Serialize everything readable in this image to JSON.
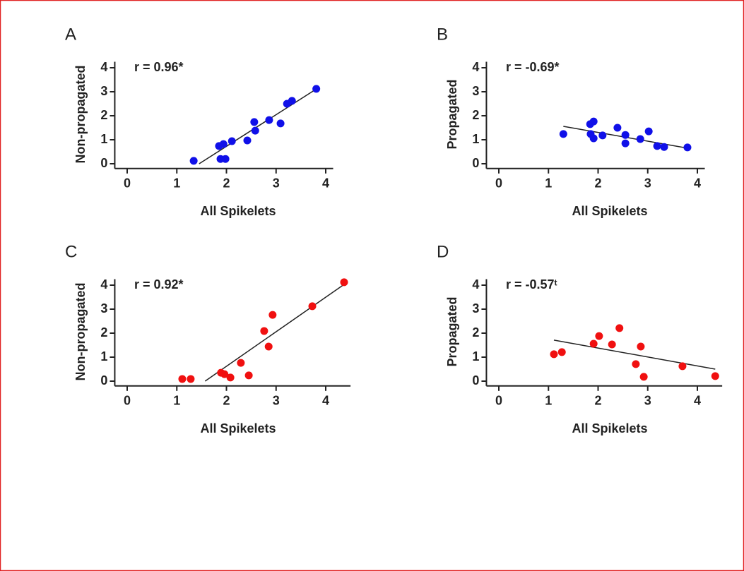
{
  "chart_data": [
    {
      "type": "scatter",
      "panel": "A",
      "annotation": "r = 0.96*",
      "xlabel": "All Spikelets",
      "ylabel": "Non-propagated",
      "color": "#1010e8",
      "x": [
        1.34,
        1.85,
        1.94,
        1.88,
        1.98,
        2.11,
        2.42,
        2.56,
        2.58,
        2.86,
        3.09,
        3.22,
        3.32,
        3.81
      ],
      "y": [
        0.12,
        0.74,
        0.82,
        0.2,
        0.2,
        0.94,
        0.97,
        1.74,
        1.38,
        1.82,
        1.68,
        2.5,
        2.62,
        3.12
      ],
      "trendline": {
        "x": [
          1.45,
          3.8
        ],
        "y": [
          0,
          3.1
        ]
      },
      "xlim": [
        -0.25,
        4.15
      ],
      "ylim": [
        -0.2,
        4.25
      ],
      "xticks": [
        0,
        1,
        2,
        3,
        4
      ],
      "yticks": [
        0,
        1,
        2,
        3,
        4
      ]
    },
    {
      "type": "scatter",
      "panel": "B",
      "annotation": "r = -0.69*",
      "xlabel": "All Spikelets",
      "ylabel": "Propagated",
      "color": "#1010e8",
      "x": [
        1.3,
        1.84,
        1.91,
        1.85,
        1.91,
        2.09,
        2.39,
        2.55,
        2.55,
        2.85,
        3.02,
        3.19,
        3.33,
        3.8
      ],
      "y": [
        1.24,
        1.65,
        1.76,
        1.24,
        1.06,
        1.18,
        1.5,
        1.2,
        0.85,
        1.03,
        1.35,
        0.74,
        0.7,
        0.68
      ],
      "trendline": {
        "x": [
          1.3,
          3.8
        ],
        "y": [
          1.56,
          0.65
        ]
      },
      "xlim": [
        -0.25,
        4.15
      ],
      "ylim": [
        -0.2,
        4.25
      ],
      "xticks": [
        0,
        1,
        2,
        3,
        4
      ],
      "yticks": [
        0,
        1,
        2,
        3,
        4
      ]
    },
    {
      "type": "scatter",
      "panel": "C",
      "annotation": "r = 0.92*",
      "xlabel": "All Spikelets",
      "ylabel": "Non-propagated",
      "color": "#f01010",
      "x": [
        1.11,
        1.28,
        1.89,
        1.96,
        2.08,
        2.29,
        2.45,
        2.76,
        2.85,
        2.93,
        3.73,
        4.37
      ],
      "y": [
        0.09,
        0.09,
        0.35,
        0.29,
        0.15,
        0.76,
        0.24,
        2.09,
        1.44,
        2.76,
        3.12,
        4.12
      ],
      "trendline": {
        "x": [
          1.57,
          4.37
        ],
        "y": [
          0,
          4.03
        ]
      },
      "xlim": [
        -0.25,
        4.5
      ],
      "ylim": [
        -0.2,
        4.25
      ],
      "xticks": [
        0,
        1,
        2,
        3,
        4
      ],
      "yticks": [
        0,
        1,
        2,
        3,
        4
      ]
    },
    {
      "type": "scatter",
      "panel": "D",
      "annotation": "r = -0.57ᵗ",
      "xlabel": "All Spikelets",
      "ylabel": "Propagated",
      "color": "#f01010",
      "x": [
        1.11,
        1.27,
        1.91,
        2.02,
        2.28,
        2.43,
        2.76,
        2.86,
        2.92,
        3.7,
        4.36
      ],
      "y": [
        1.12,
        1.21,
        1.56,
        1.88,
        1.53,
        2.21,
        0.71,
        1.44,
        0.18,
        0.62,
        0.21
      ],
      "trendline": {
        "x": [
          1.11,
          4.36
        ],
        "y": [
          1.71,
          0.5
        ]
      },
      "xlim": [
        -0.25,
        4.5
      ],
      "ylim": [
        -0.2,
        4.25
      ],
      "xticks": [
        0,
        1,
        2,
        3,
        4
      ],
      "yticks": [
        0,
        1,
        2,
        3,
        4
      ]
    }
  ]
}
